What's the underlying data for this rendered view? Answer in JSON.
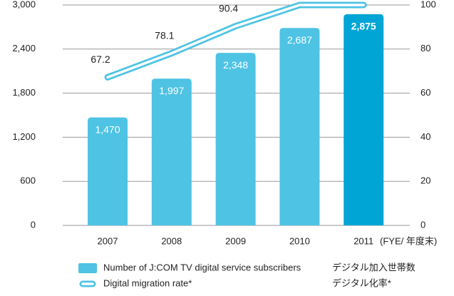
{
  "chart_data": {
    "type": "bar_line",
    "categories": [
      "2007",
      "2008",
      "2009",
      "2010",
      "2011"
    ],
    "x_label": "(FYE/ 年度末)",
    "series": [
      {
        "name": "Number of J:COM TV digital service subscribers",
        "name_ja": "デジタル加入世帯数",
        "type": "bar",
        "colors": [
          "#4ec3e4",
          "#4ec3e4",
          "#4ec3e4",
          "#4ec3e4",
          "#00a5d5"
        ],
        "values": [
          1470,
          1997,
          2348,
          2687,
          2875
        ],
        "value_labels": [
          "1,470",
          "1,997",
          "2,348",
          "2,687",
          "2,875"
        ]
      },
      {
        "name": "Digital migration rate*",
        "name_ja": "デジタル化率*",
        "type": "line",
        "axis": "y2",
        "color": "#4ec3e4",
        "values": [
          67.2,
          78.1,
          90.4,
          100,
          100
        ],
        "value_labels": [
          "67.2",
          "78.1",
          "90.4",
          null,
          null
        ]
      }
    ],
    "ylim": [
      0,
      3000
    ],
    "yticks": [
      0,
      600,
      {
        "value": 1200,
        "label": "1,200"
      },
      {
        "value": 1800,
        "label": "1,800"
      },
      {
        "value": 2400,
        "label": "2,400"
      },
      {
        "value": 3000,
        "label": "3,000"
      }
    ],
    "y2lim": [
      0,
      100
    ],
    "y2ticks": [
      0,
      20,
      40,
      60,
      80,
      100
    ],
    "grid": true
  }
}
